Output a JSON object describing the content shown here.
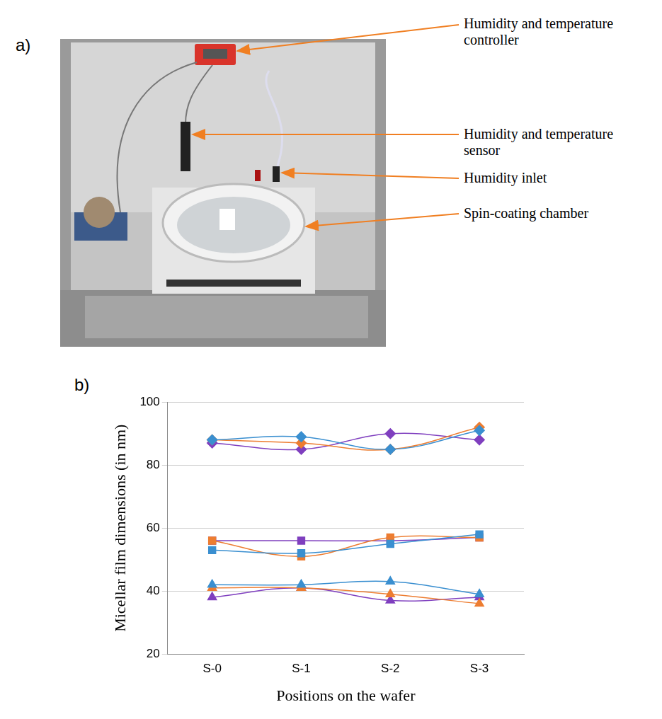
{
  "figure": {
    "panels": [
      {
        "letter": "a)",
        "callouts": [
          "Humidity and temperature controller",
          "Humidity and temperature sensor",
          "Humidity inlet",
          "Spin-coating chamber"
        ]
      },
      {
        "letter": "b)"
      }
    ]
  },
  "chart_data": {
    "type": "line",
    "x_label": "Positions on the wafer",
    "y_label": "Micellar film dimensions (in nm)",
    "categories": [
      "S-0",
      "S-1",
      "S-2",
      "S-3"
    ],
    "ylim": [
      20,
      100
    ],
    "yticks": [
      20,
      40,
      60,
      80,
      100
    ],
    "grid": true,
    "series": [
      {
        "color": "#3a8fd0",
        "marker": "diamond",
        "line_style": "solid",
        "values": [
          88,
          89,
          85,
          91
        ]
      },
      {
        "color": "#ed7d31",
        "marker": "diamond",
        "line_style": "solid",
        "values": [
          88,
          87,
          85,
          92
        ]
      },
      {
        "color": "#7f3fbf",
        "marker": "diamond",
        "line_style": "solid",
        "values": [
          87,
          85,
          90,
          88
        ]
      },
      {
        "color": "#3a8fd0",
        "marker": "square",
        "line_style": "solid",
        "values": [
          53,
          52,
          55,
          58
        ]
      },
      {
        "color": "#ed7d31",
        "marker": "square",
        "line_style": "solid",
        "values": [
          56,
          51,
          57,
          57
        ]
      },
      {
        "color": "#7f3fbf",
        "marker": "square",
        "line_style": "solid",
        "values": [
          56,
          56,
          56,
          57
        ]
      },
      {
        "color": "#3a8fd0",
        "marker": "triangle",
        "line_style": "solid",
        "values": [
          42,
          42,
          43,
          39
        ]
      },
      {
        "color": "#ed7d31",
        "marker": "triangle",
        "line_style": "solid",
        "values": [
          41,
          41,
          39,
          36
        ]
      },
      {
        "color": "#7f3fbf",
        "marker": "triangle",
        "line_style": "solid",
        "values": [
          38,
          41,
          37,
          38
        ]
      }
    ]
  }
}
